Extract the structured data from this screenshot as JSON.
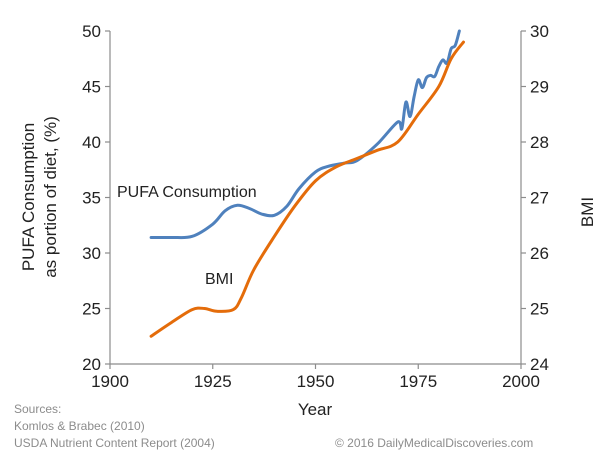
{
  "chart_data": {
    "type": "line",
    "xlabel": "Year",
    "ylabel_left_line1": "PUFA Consumption",
    "ylabel_left_line2": "as portion of diet, (%)",
    "ylabel_right": "BMI",
    "xlim": [
      1900,
      2000
    ],
    "ylim_left": [
      20,
      50
    ],
    "ylim_right": [
      24,
      30
    ],
    "x_ticks": [
      1900,
      1925,
      1950,
      1975,
      2000
    ],
    "y_ticks_left": [
      20,
      25,
      30,
      35,
      40,
      45,
      50
    ],
    "y_ticks_right": [
      24,
      25,
      26,
      27,
      28,
      29,
      30
    ],
    "grid": false,
    "legend": "none",
    "series": [
      {
        "name": "PUFA Consumption",
        "axis": "left",
        "color": "#4f81bd",
        "x": [
          1910,
          1915,
          1920,
          1925,
          1928,
          1931,
          1934,
          1937,
          1940,
          1943,
          1946,
          1950,
          1953,
          1957,
          1960,
          1965,
          1970,
          1971,
          1972,
          1973,
          1974,
          1975,
          1976,
          1977,
          1978,
          1979,
          1980,
          1981,
          1982,
          1983,
          1984,
          1985
        ],
        "values": [
          31.4,
          31.4,
          31.5,
          32.6,
          33.8,
          34.3,
          34.0,
          33.5,
          33.4,
          34.2,
          35.8,
          37.3,
          37.8,
          38.1,
          38.3,
          39.8,
          41.8,
          41.2,
          43.6,
          42.3,
          44.1,
          45.6,
          44.9,
          45.8,
          46.0,
          45.9,
          46.8,
          47.4,
          47.1,
          48.4,
          48.7,
          50.0
        ]
      },
      {
        "name": "BMI",
        "axis": "right",
        "color": "#e46c0a",
        "x": [
          1910,
          1915,
          1920,
          1923,
          1926,
          1930,
          1932,
          1935,
          1940,
          1945,
          1950,
          1955,
          1960,
          1965,
          1970,
          1975,
          1980,
          1983,
          1986
        ],
        "values": [
          24.5,
          24.75,
          24.98,
          25.0,
          24.95,
          24.98,
          25.2,
          25.7,
          26.3,
          26.85,
          27.3,
          27.55,
          27.7,
          27.85,
          28.0,
          28.5,
          29.0,
          29.5,
          29.8
        ]
      }
    ],
    "annotations": [
      "PUFA Consumption",
      "BMI"
    ]
  },
  "footer": {
    "sources_heading": "Sources:",
    "source_1": "Komlos & Brabec  (2010)",
    "source_2": "USDA Nutrient Content Report (2004)",
    "copyright": "© 2016 DailyMedicalDiscoveries.com"
  }
}
